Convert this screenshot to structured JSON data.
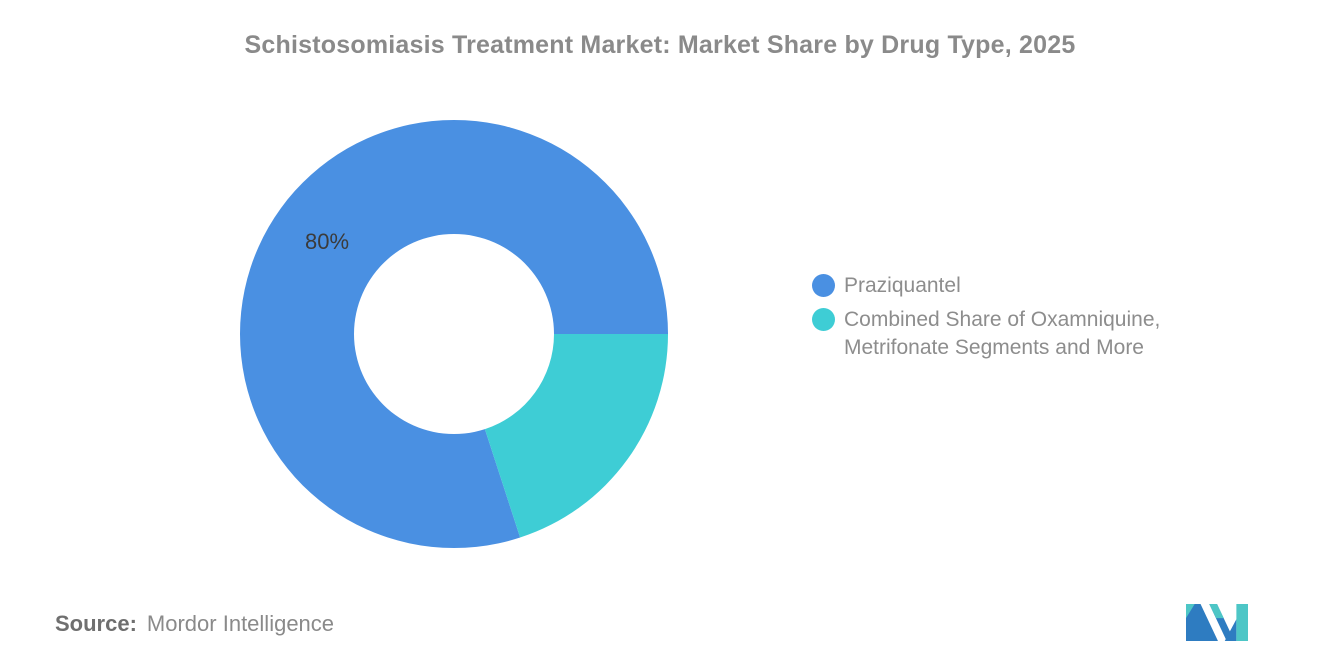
{
  "title": "Schistosomiasis Treatment Market: Market Share by Drug Type, 2025",
  "source": {
    "label": "Source:",
    "value": "Mordor Intelligence"
  },
  "logo": {
    "name": "mordor-intelligence-logo",
    "teal": "#4DC6C6",
    "blue": "#2E7CC1"
  },
  "chart_data": {
    "type": "pie",
    "subtype": "donut",
    "title": "Schistosomiasis Treatment Market: Market Share by Drug Type, 2025",
    "unit": "%",
    "slices": [
      {
        "label": "Praziquantel",
        "value": 80,
        "color": "#4A90E2",
        "data_label": "80%"
      },
      {
        "label": "Combined Share of Oxamniquine, Metrifonate Segments and More",
        "value": 20,
        "color": "#3ECDD5",
        "data_label": ""
      }
    ],
    "inner_radius_ratio": 0.467,
    "start_angle_deg": 0,
    "direction": "counterclockwise",
    "legend_position": "right",
    "data_label_color": "#3b3b3b",
    "background": "#ffffff"
  }
}
